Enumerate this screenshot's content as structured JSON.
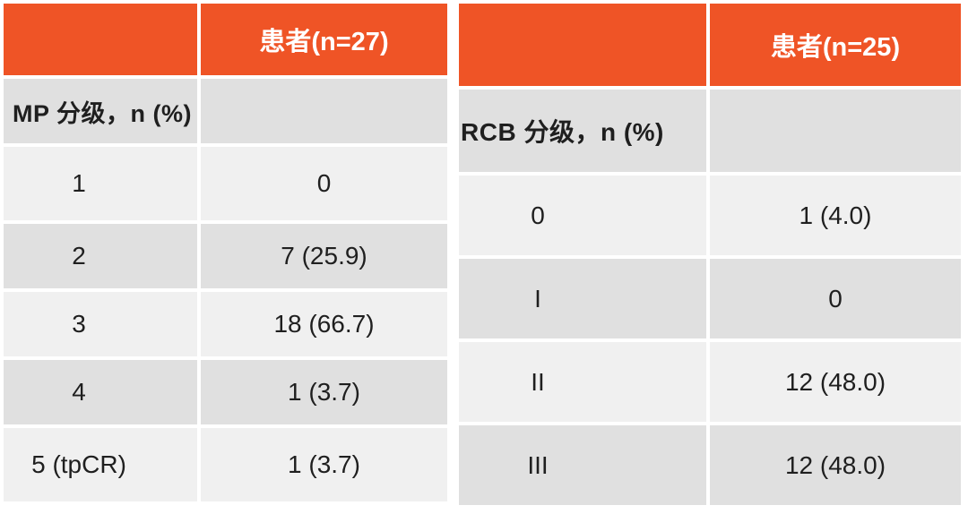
{
  "colors": {
    "header_bg": "#EF5426",
    "header_text": "#FFFFFF",
    "row_light": "#F0F0F0",
    "row_dark": "#E0E0E0",
    "cell_text": "#1F1F1F",
    "page_bg": "#FFFFFF"
  },
  "left_table": {
    "header_label": "患者(n=27)",
    "category_label": "MP 分级，n (%)",
    "rows": [
      {
        "grade": "1",
        "value": "0"
      },
      {
        "grade": "2",
        "value": "7 (25.9)"
      },
      {
        "grade": "3",
        "value": "18 (66.7)"
      },
      {
        "grade": "4",
        "value": "1 (3.7)"
      },
      {
        "grade": "5 (tpCR)",
        "value": "1 (3.7)"
      }
    ]
  },
  "right_table": {
    "header_label": "患者(n=25)",
    "category_label": "RCB 分级，n (%)",
    "rows": [
      {
        "grade": "0",
        "value": "1 (4.0)"
      },
      {
        "grade": "I",
        "value": "0"
      },
      {
        "grade": "II",
        "value": "12 (48.0)"
      },
      {
        "grade": "III",
        "value": "12 (48.0)"
      }
    ]
  }
}
